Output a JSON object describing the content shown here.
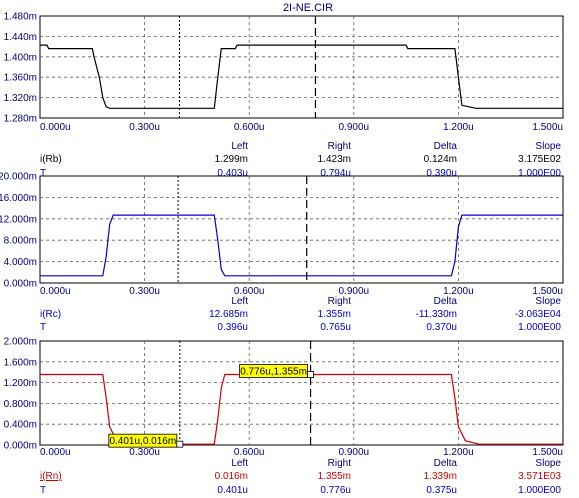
{
  "window": {
    "title": "2I-NE.CIR"
  },
  "colors": {
    "axis_text": "#000080",
    "grid": "#606060",
    "tooltip_bg": "#ffff00",
    "cursor_text_black": "#000000",
    "cursor_text_blue": "#0000cc",
    "cursor_text_red": "#cc0000",
    "cursor_text_label_red": "#cc0000"
  },
  "cursor_headers": [
    "Left",
    "Right",
    "Delta",
    "Slope"
  ],
  "chart_data": [
    {
      "type": "line",
      "id": "rb",
      "color": "#000000",
      "y_tick_labels": [
        "1.480m",
        "1.440m",
        "1.400m",
        "1.360m",
        "1.320m",
        "1.280m"
      ],
      "x_tick_labels": [
        "0.000u",
        "0.300u",
        "0.600u",
        "0.900u",
        "1.200u",
        "1.500u"
      ],
      "xlim": [
        0,
        1.5
      ],
      "ylim": [
        1.28,
        1.48
      ],
      "series": [
        {
          "x": [
            0,
            0.02,
            0.025,
            0.15,
            0.155,
            0.17,
            0.18,
            0.19,
            0.2,
            0.5,
            0.51,
            0.52,
            0.56,
            0.565,
            0.78,
            0.785,
            1.0,
            1.05,
            1.055,
            1.19,
            1.2,
            1.21,
            1.25,
            1.5
          ],
          "y": [
            1.423,
            1.423,
            1.416,
            1.416,
            1.4,
            1.36,
            1.32,
            1.302,
            1.299,
            1.299,
            1.36,
            1.416,
            1.416,
            1.423,
            1.423,
            1.423,
            1.423,
            1.423,
            1.416,
            1.416,
            1.36,
            1.305,
            1.299,
            1.299
          ]
        }
      ],
      "cursors": {
        "left_x": 0.4,
        "right_x": 0.79
      },
      "cursor_rows": [
        {
          "label": "i(Rb)",
          "left": "1.299m",
          "right": "1.423m",
          "delta": "0.124m",
          "slope": "3.175E02",
          "color_key": "cursor_text_black"
        },
        {
          "label": "T",
          "left": "0.403u",
          "right": "0.794u",
          "delta": "0.390u",
          "slope": "1.000E00",
          "color_key": "cursor_text_blue"
        }
      ]
    },
    {
      "type": "line",
      "id": "rc",
      "color": "#0000cc",
      "y_tick_labels": [
        "20.000m",
        "16.000m",
        "12.000m",
        "8.000m",
        "4.000m",
        "0.000m"
      ],
      "x_tick_labels": [
        "0.000u",
        "0.300u",
        "0.600u",
        "0.900u",
        "1.200u",
        "1.500u"
      ],
      "xlim": [
        0,
        1.5
      ],
      "ylim": [
        0,
        20
      ],
      "series": [
        {
          "x": [
            0,
            0.18,
            0.19,
            0.2,
            0.21,
            0.5,
            0.51,
            0.52,
            0.53,
            1.18,
            1.19,
            1.2,
            1.21,
            1.5
          ],
          "y": [
            1.355,
            1.355,
            5,
            11,
            12.685,
            12.685,
            8,
            2.5,
            1.355,
            1.355,
            4,
            10.5,
            12.685,
            12.685
          ]
        }
      ],
      "cursors": {
        "left_x": 0.396,
        "right_x": 0.765
      },
      "cursor_rows": [
        {
          "label": "i(Rc)",
          "left": "12.685m",
          "right": "1.355m",
          "delta": "-11.330m",
          "slope": "-3.063E04",
          "color_key": "cursor_text_blue"
        },
        {
          "label": "T",
          "left": "0.396u",
          "right": "0.765u",
          "delta": "0.370u",
          "slope": "1.000E00",
          "color_key": "cursor_text_blue"
        }
      ]
    },
    {
      "type": "line",
      "id": "rn",
      "color": "#cc0000",
      "y_tick_labels": [
        "2.000m",
        "1.600m",
        "1.200m",
        "0.800m",
        "0.400m",
        "0.000m"
      ],
      "x_tick_labels": [
        "0.000u",
        "0.300u",
        "0.600u",
        "0.900u",
        "1.200u",
        "1.500u"
      ],
      "xlim": [
        0,
        1.5
      ],
      "ylim": [
        0,
        2
      ],
      "series": [
        {
          "x": [
            0,
            0.18,
            0.19,
            0.2,
            0.22,
            0.26,
            0.5,
            0.51,
            0.52,
            0.53,
            1.18,
            1.19,
            1.2,
            1.22,
            1.26,
            1.5
          ],
          "y": [
            1.355,
            1.355,
            0.9,
            0.35,
            0.08,
            0.016,
            0.016,
            0.5,
            1.1,
            1.355,
            1.355,
            0.9,
            0.35,
            0.08,
            0.016,
            0.016
          ]
        }
      ],
      "cursors": {
        "left_x": 0.401,
        "right_x": 0.776
      },
      "tooltips": [
        {
          "text": "0.401u,0.016m",
          "x": 0.401,
          "y": 0.016,
          "side": "left"
        },
        {
          "text": "0.776u,1.355m",
          "x": 0.776,
          "y": 1.355,
          "side": "left"
        }
      ],
      "cursor_rows": [
        {
          "label": "i(Rn)",
          "left": "0.016m",
          "right": "1.355m",
          "delta": "1.339m",
          "slope": "3.571E03",
          "color_key": "cursor_text_red",
          "underline": true
        },
        {
          "label": "T",
          "left": "0.401u",
          "right": "0.776u",
          "delta": "0.375u",
          "slope": "1.000E00",
          "color_key": "cursor_text_blue"
        }
      ]
    }
  ]
}
